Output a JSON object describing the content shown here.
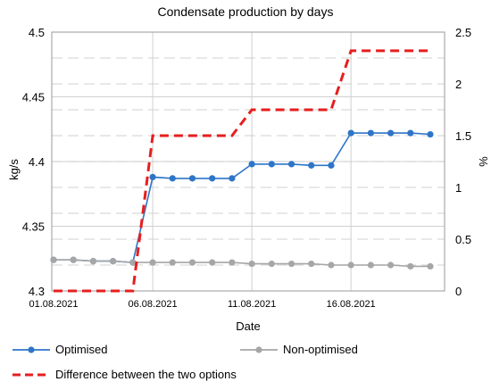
{
  "chart_data": {
    "type": "line",
    "title": "Condensate production by days",
    "xlabel": "Date",
    "ylabel_left": "kg/s",
    "ylabel_right": "%",
    "x": [
      "01.08.2021",
      "02.08.2021",
      "03.08.2021",
      "04.08.2021",
      "05.08.2021",
      "06.08.2021",
      "07.08.2021",
      "08.08.2021",
      "09.08.2021",
      "10.08.2021",
      "11.08.2021",
      "12.08.2021",
      "13.08.2021",
      "14.08.2021",
      "15.08.2021",
      "16.08.2021",
      "17.08.2021",
      "18.08.2021",
      "19.08.2021",
      "20.08.2021"
    ],
    "x_tick_labels": [
      "01.08.2021",
      "06.08.2021",
      "11.08.2021",
      "16.08.2021"
    ],
    "ylim_left": [
      4.3,
      4.5
    ],
    "y_ticks_left": [
      "4.3",
      "4.35",
      "4.4",
      "4.45",
      "4.5"
    ],
    "ylim_right": [
      0,
      2.5
    ],
    "y_ticks_right": [
      "0",
      "0.5",
      "1",
      "1.5",
      "2",
      "2.5"
    ],
    "grid": true,
    "legend_position": "bottom",
    "series": [
      {
        "name": "Optimised",
        "axis": "left",
        "color": "#2E75C8",
        "marker": "circle",
        "values": [
          4.324,
          4.324,
          4.323,
          4.323,
          4.322,
          4.388,
          4.387,
          4.387,
          4.387,
          4.387,
          4.398,
          4.398,
          4.398,
          4.397,
          4.397,
          4.422,
          4.422,
          4.422,
          4.422,
          4.421
        ]
      },
      {
        "name": "Non-optimised",
        "axis": "left",
        "color": "#A6A6A6",
        "marker": "circle",
        "values": [
          4.324,
          4.324,
          4.323,
          4.323,
          4.322,
          4.322,
          4.322,
          4.322,
          4.322,
          4.322,
          4.321,
          4.321,
          4.321,
          4.321,
          4.32,
          4.32,
          4.32,
          4.32,
          4.319,
          4.319
        ]
      },
      {
        "name": "Difference between the two options",
        "axis": "right",
        "color": "#E61E1E",
        "style": "dashed",
        "values": [
          0,
          0,
          0,
          0,
          0,
          1.5,
          1.5,
          1.5,
          1.5,
          1.5,
          1.75,
          1.75,
          1.75,
          1.75,
          1.75,
          2.32,
          2.32,
          2.32,
          2.32,
          2.32
        ]
      }
    ]
  }
}
